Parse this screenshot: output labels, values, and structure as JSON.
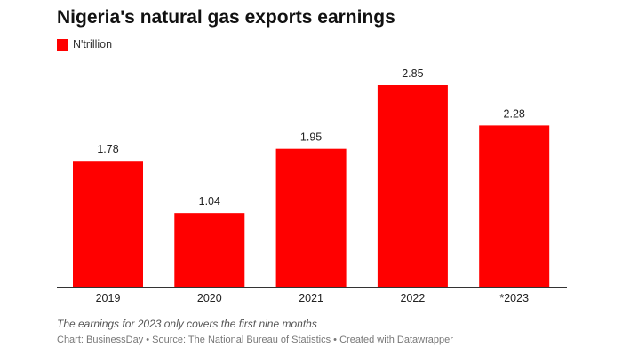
{
  "chart_data": {
    "type": "bar",
    "title": "Nigeria's natural gas exports earnings",
    "legend": "N'trillion",
    "categories": [
      "2019",
      "2020",
      "2021",
      "2022",
      "*2023"
    ],
    "series": [
      {
        "name": "N'trillion",
        "values": [
          1.78,
          1.04,
          1.95,
          2.85,
          2.28
        ]
      }
    ],
    "value_labels": [
      "1.78",
      "1.04",
      "1.95",
      "2.85",
      "2.28"
    ],
    "ylim": [
      0,
      2.85
    ],
    "grid": false,
    "bar_color": "#ff0000",
    "note": "The earnings for 2023 only covers the first nine months",
    "source": "Chart: BusinessDay • Source: The National Bureau of Statistics • Created with Datawrapper"
  }
}
